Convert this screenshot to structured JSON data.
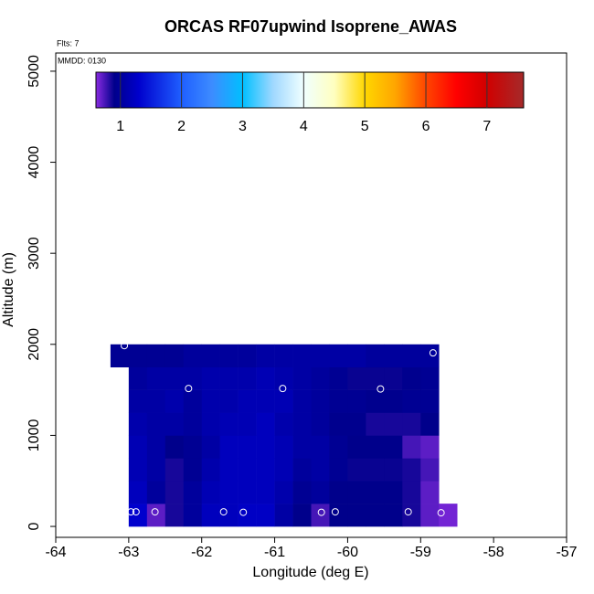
{
  "chart_data": {
    "type": "heatmap",
    "title": "ORCAS RF07upwind Isoprene_AWAS",
    "note_flights": "Flts: 7",
    "note_date": "MMDD: 0130",
    "xlabel": "Longitude (deg E)",
    "ylabel": "Altitude (m)",
    "xlim": [
      -64,
      -57
    ],
    "ylim": [
      -120,
      5200
    ],
    "xticks": [
      -64,
      -63,
      -62,
      -61,
      -60,
      -59,
      -58,
      -57
    ],
    "yticks": [
      0,
      1000,
      2000,
      3000,
      4000,
      5000
    ],
    "x": [
      -63.125,
      -62.875,
      -62.625,
      -62.375,
      -62.125,
      -61.875,
      -61.625,
      -61.375,
      -61.125,
      -60.875,
      -60.625,
      -60.375,
      -60.125,
      -59.875,
      -59.625,
      -59.375,
      -59.125,
      -58.875,
      -58.625
    ],
    "y": [
      125,
      375,
      625,
      875,
      1125,
      1375,
      1625,
      1875
    ],
    "z": [
      [
        null,
        1.3,
        0.7,
        0.85,
        1.0,
        1.2,
        1.2,
        1.25,
        1.25,
        1.05,
        0.9,
        0.75,
        0.9,
        0.9,
        0.9,
        0.9,
        0.85,
        0.7,
        0.65
      ],
      [
        null,
        1.2,
        1.0,
        0.85,
        1.0,
        1.15,
        1.2,
        1.2,
        1.2,
        1.1,
        0.95,
        1.0,
        0.9,
        0.9,
        0.9,
        0.9,
        0.85,
        0.7,
        null
      ],
      [
        null,
        1.15,
        1.05,
        0.85,
        0.95,
        1.1,
        1.2,
        1.2,
        1.2,
        1.15,
        1.0,
        1.05,
        0.95,
        0.88,
        0.88,
        0.88,
        0.85,
        0.75,
        null
      ],
      [
        null,
        1.15,
        1.05,
        0.9,
        0.95,
        1.05,
        1.2,
        1.2,
        1.2,
        1.15,
        1.05,
        1.05,
        0.95,
        0.9,
        0.9,
        0.9,
        0.75,
        0.7,
        null
      ],
      [
        null,
        1.1,
        1.05,
        1.05,
        1.0,
        1.1,
        1.15,
        1.15,
        1.2,
        1.1,
        1.05,
        1.0,
        0.92,
        0.92,
        0.85,
        0.85,
        0.85,
        0.9,
        null
      ],
      [
        null,
        1.05,
        1.05,
        1.1,
        1.0,
        1.1,
        1.1,
        1.15,
        1.15,
        1.15,
        1.05,
        1.0,
        0.95,
        0.95,
        0.92,
        0.92,
        0.95,
        0.95,
        null
      ],
      [
        null,
        1.0,
        1.05,
        1.05,
        1.05,
        1.1,
        1.1,
        1.1,
        1.15,
        1.1,
        1.05,
        1.0,
        0.95,
        0.88,
        0.88,
        0.88,
        0.92,
        0.95,
        null
      ],
      [
        0.95,
        0.95,
        0.95,
        0.95,
        1.0,
        1.0,
        1.0,
        1.0,
        1.05,
        1.05,
        1.05,
        1.05,
        1.05,
        1.05,
        1.0,
        1.0,
        1.0,
        1.0,
        null
      ]
    ],
    "points": {
      "x": [
        -63.06,
        -62.97,
        -62.9,
        -62.64,
        -62.18,
        -61.7,
        -61.43,
        -60.89,
        -60.36,
        -60.17,
        -59.55,
        -59.17,
        -58.83,
        -58.72
      ],
      "y": [
        1986,
        160,
        160,
        160,
        1515,
        160,
        155,
        1515,
        155,
        160,
        1510,
        160,
        1906,
        150
      ],
      "color": "#ffffff"
    },
    "colorbar": {
      "lim": [
        0.6,
        7.6
      ],
      "ticks": [
        1,
        2,
        3,
        4,
        5,
        6,
        7
      ],
      "stops": [
        {
          "value": 0.6,
          "color": "#8a2be2"
        },
        {
          "value": 0.9,
          "color": "#00008b"
        },
        {
          "value": 1.3,
          "color": "#0000cd"
        },
        {
          "value": 2,
          "color": "#1f5fff"
        },
        {
          "value": 2.5,
          "color": "#3d8cff"
        },
        {
          "value": 3,
          "color": "#00bfff"
        },
        {
          "value": 3.5,
          "color": "#a0d8ff"
        },
        {
          "value": 4,
          "color": "#f0ffff"
        },
        {
          "value": 4.5,
          "color": "#ffffc0"
        },
        {
          "value": 5,
          "color": "#ffd700"
        },
        {
          "value": 5.5,
          "color": "#ffa500"
        },
        {
          "value": 6,
          "color": "#ff4500"
        },
        {
          "value": 6.5,
          "color": "#ff0000"
        },
        {
          "value": 7,
          "color": "#d00000"
        },
        {
          "value": 7.6,
          "color": "#a52a2a"
        }
      ]
    }
  }
}
